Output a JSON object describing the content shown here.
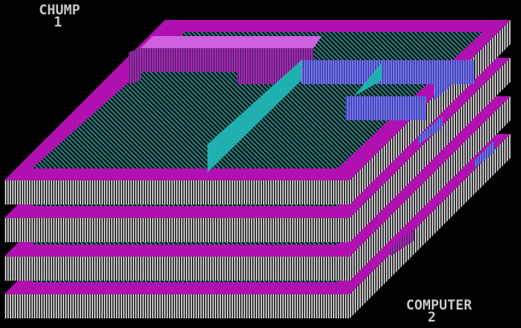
{
  "players": [
    {
      "name": "CHUMP",
      "score": 1
    },
    {
      "name": "COMPUTER",
      "score": 2
    }
  ]
}
